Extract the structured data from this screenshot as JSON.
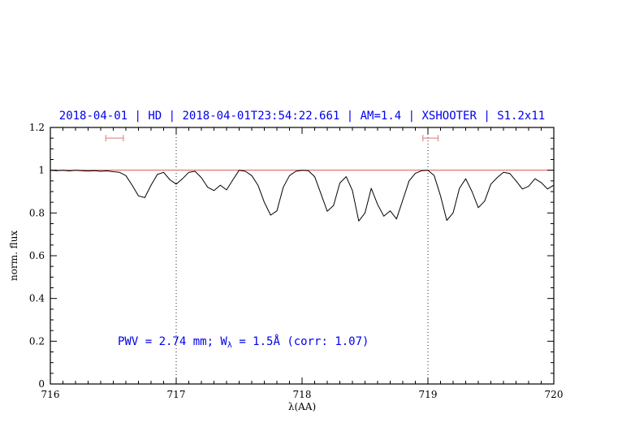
{
  "title": "2018-04-01 | HD | 2018-04-01T23:54:22.661 | AM=1.4 | XSHOOTER | S1.2x11",
  "annotation": {
    "prefix": "PWV = 2.74 mm; W",
    "subscript": "λ",
    "suffix": " = 1.5Å (corr: 1.07)"
  },
  "colors": {
    "accent_blue": "#0000ee",
    "line_red": "#dd5555",
    "marker_red": "#dd7777",
    "spectrum": "#000000",
    "frame": "#000000",
    "dotted_line": "#222222"
  },
  "chart_data": {
    "type": "line",
    "title": "2018-04-01 | HD | 2018-04-01T23:54:22.661 | AM=1.4 | XSHOOTER | S1.2x11",
    "xlabel": "λ(AA)",
    "ylabel": "norm. flux",
    "xlim": [
      716,
      720
    ],
    "ylim": [
      0,
      1.2
    ],
    "grid": false,
    "legend": "none",
    "xticks": {
      "values": [
        716,
        717,
        718,
        719,
        720
      ],
      "labels": [
        "716",
        "717",
        "718",
        "719",
        "720"
      ]
    },
    "yticks": {
      "values": [
        0,
        0.2,
        0.4,
        0.6,
        0.8,
        1,
        1.2
      ],
      "labels": [
        "0",
        "0.2",
        "0.4",
        "0.6",
        "0.8",
        "1",
        "1.2"
      ]
    },
    "minor_x_step": 0.1,
    "minor_y_step": 0.05,
    "vlines": [
      717,
      719
    ],
    "hline": 1.0,
    "range_markers": [
      {
        "x_start": 716.44,
        "x_end": 716.58,
        "y": 1.15
      },
      {
        "x_start": 718.96,
        "x_end": 719.08,
        "y": 1.15
      }
    ],
    "annotation_position": {
      "x": 716.55,
      "y": 0.2
    },
    "series": [
      {
        "name": "telluric-spectrum",
        "x": [
          716.0,
          716.05,
          716.1,
          716.15,
          716.2,
          716.25,
          716.3,
          716.35,
          716.4,
          716.45,
          716.5,
          716.55,
          716.6,
          716.65,
          716.7,
          716.75,
          716.8,
          716.85,
          716.9,
          716.95,
          717.0,
          717.05,
          717.1,
          717.15,
          717.2,
          717.25,
          717.3,
          717.35,
          717.4,
          717.45,
          717.5,
          717.55,
          717.6,
          717.65,
          717.7,
          717.75,
          717.8,
          717.85,
          717.9,
          717.95,
          718.0,
          718.05,
          718.1,
          718.15,
          718.2,
          718.25,
          718.3,
          718.35,
          718.4,
          718.45,
          718.5,
          718.55,
          718.6,
          718.65,
          718.7,
          718.75,
          718.8,
          718.85,
          718.9,
          718.95,
          719.0,
          719.05,
          719.1,
          719.15,
          719.2,
          719.25,
          719.3,
          719.35,
          719.4,
          719.45,
          719.5,
          719.55,
          719.6,
          719.65,
          719.7,
          719.75,
          719.8,
          719.85,
          719.9,
          719.95,
          720.0
        ],
        "y": [
          1.0,
          0.998,
          1.0,
          0.997,
          1.0,
          0.998,
          0.996,
          0.998,
          0.995,
          0.997,
          0.993,
          0.99,
          0.975,
          0.93,
          0.88,
          0.872,
          0.93,
          0.98,
          0.99,
          0.955,
          0.935,
          0.96,
          0.99,
          0.995,
          0.965,
          0.92,
          0.905,
          0.93,
          0.908,
          0.955,
          1.0,
          0.995,
          0.975,
          0.93,
          0.85,
          0.79,
          0.81,
          0.92,
          0.975,
          0.995,
          1.0,
          0.998,
          0.97,
          0.89,
          0.808,
          0.835,
          0.94,
          0.97,
          0.905,
          0.762,
          0.8,
          0.915,
          0.84,
          0.785,
          0.81,
          0.772,
          0.86,
          0.95,
          0.985,
          0.998,
          1.0,
          0.975,
          0.88,
          0.765,
          0.8,
          0.915,
          0.96,
          0.9,
          0.825,
          0.855,
          0.935,
          0.965,
          0.99,
          0.985,
          0.95,
          0.912,
          0.925,
          0.96,
          0.942,
          0.912,
          0.93
        ]
      }
    ]
  }
}
